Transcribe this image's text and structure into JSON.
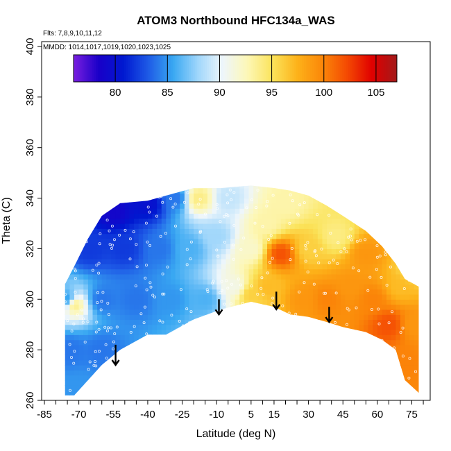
{
  "chart_data": {
    "type": "heatmap",
    "title": "ATOM3 Northbound HFC134a_WAS",
    "annotations": {
      "flights": "Flts: 7,8,9,10,11,12",
      "dates": "MMDD: 1014,1017,1019,1020,1023,1025"
    },
    "xlabel": "Latitude (deg N)",
    "ylabel": "Theta (C)",
    "xlim": [
      -85,
      83
    ],
    "ylim": [
      260,
      400
    ],
    "x_tick_labels": [
      "-85",
      "-70",
      "-55",
      "-40",
      "-25",
      "-10",
      "5",
      "15",
      "30",
      "45",
      "60",
      "75"
    ],
    "y_tick_labels": [
      "260",
      "280",
      "300",
      "320",
      "340",
      "360",
      "380",
      "400"
    ],
    "colorbar": {
      "range": [
        76,
        107
      ],
      "tick_labels": [
        "80",
        "85",
        "90",
        "95",
        "100",
        "105"
      ],
      "colors": [
        "#7a1fe0",
        "#1a00c8",
        "#0018d0",
        "#1e5ae6",
        "#39a8f2",
        "#9fd6fb",
        "#eef6fb",
        "#fdf7b6",
        "#fbe35a",
        "#fdb219",
        "#fb8709",
        "#f44a03",
        "#e00000",
        "#a31a1a"
      ]
    },
    "boundary": {
      "lat": [
        -76,
        -72,
        -66,
        -60,
        -52,
        -40,
        -32,
        -20,
        -8,
        5,
        15,
        22,
        30,
        38,
        45,
        55,
        62,
        68,
        72,
        78
      ],
      "theta_bottom": [
        262,
        262,
        268,
        274,
        280,
        286,
        286,
        292,
        296,
        299,
        297,
        294,
        293,
        291,
        289,
        287,
        284,
        280,
        268,
        263
      ],
      "theta_top": [
        306,
        313,
        324,
        333,
        338,
        339,
        341,
        344,
        344,
        345,
        344,
        343,
        341,
        337,
        333,
        327,
        321,
        314,
        308,
        305
      ]
    },
    "field_anchors": [
      {
        "lat": -75,
        "theta": 300,
        "value": 85
      },
      {
        "lat": -72,
        "theta": 298,
        "value": 94
      },
      {
        "lat": -74,
        "theta": 280,
        "value": 84
      },
      {
        "lat": -70,
        "theta": 265,
        "value": 85
      },
      {
        "lat": -65,
        "theta": 320,
        "value": 82
      },
      {
        "lat": -60,
        "theta": 300,
        "value": 84
      },
      {
        "lat": -60,
        "theta": 280,
        "value": 84
      },
      {
        "lat": -55,
        "theta": 335,
        "value": 79
      },
      {
        "lat": -50,
        "theta": 320,
        "value": 82
      },
      {
        "lat": -45,
        "theta": 300,
        "value": 84
      },
      {
        "lat": -40,
        "theta": 338,
        "value": 80
      },
      {
        "lat": -35,
        "theta": 320,
        "value": 84
      },
      {
        "lat": -30,
        "theta": 300,
        "value": 85
      },
      {
        "lat": -28,
        "theta": 340,
        "value": 84
      },
      {
        "lat": -22,
        "theta": 320,
        "value": 86
      },
      {
        "lat": -18,
        "theta": 340,
        "value": 94
      },
      {
        "lat": -15,
        "theta": 300,
        "value": 86
      },
      {
        "lat": -10,
        "theta": 325,
        "value": 88
      },
      {
        "lat": -5,
        "theta": 340,
        "value": 89
      },
      {
        "lat": -2,
        "theta": 305,
        "value": 91
      },
      {
        "lat": 5,
        "theta": 320,
        "value": 92
      },
      {
        "lat": 5,
        "theta": 302,
        "value": 96
      },
      {
        "lat": 12,
        "theta": 330,
        "value": 93
      },
      {
        "lat": 12,
        "theta": 305,
        "value": 97
      },
      {
        "lat": 18,
        "theta": 318,
        "value": 102
      },
      {
        "lat": 20,
        "theta": 338,
        "value": 93
      },
      {
        "lat": 28,
        "theta": 300,
        "value": 99
      },
      {
        "lat": 30,
        "theta": 320,
        "value": 96
      },
      {
        "lat": 38,
        "theta": 300,
        "value": 100
      },
      {
        "lat": 42,
        "theta": 325,
        "value": 94
      },
      {
        "lat": 48,
        "theta": 305,
        "value": 99
      },
      {
        "lat": 55,
        "theta": 318,
        "value": 99
      },
      {
        "lat": 58,
        "theta": 300,
        "value": 100
      },
      {
        "lat": 65,
        "theta": 290,
        "value": 102
      },
      {
        "lat": 70,
        "theta": 305,
        "value": 97
      },
      {
        "lat": 72,
        "theta": 275,
        "value": 100
      },
      {
        "lat": 76,
        "theta": 312,
        "value": 95
      },
      {
        "lat": 76,
        "theta": 290,
        "value": 99
      }
    ],
    "arrows": [
      {
        "lat": -54,
        "theta_top": 282,
        "theta_bottom": 274
      },
      {
        "lat": -9,
        "theta_top": 300,
        "theta_bottom": 294
      },
      {
        "lat": 16,
        "theta_top": 303,
        "theta_bottom": 296
      },
      {
        "lat": 39,
        "theta_top": 297,
        "theta_bottom": 291
      }
    ]
  }
}
